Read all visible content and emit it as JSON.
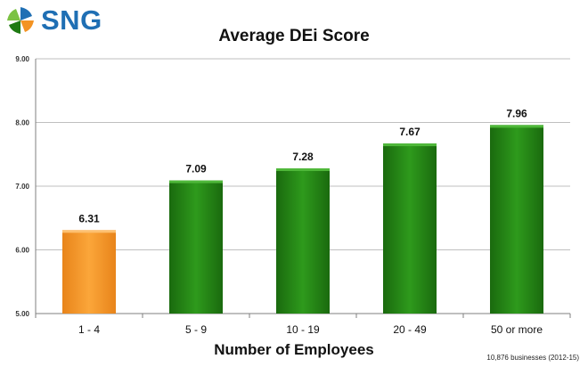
{
  "logo": {
    "text": "SNG",
    "icon": "sng-pinwheel-logo-icon"
  },
  "chart_data": {
    "type": "bar",
    "title": "Average DEi Score",
    "xlabel": "Number of Employees",
    "ylabel": "",
    "categories": [
      "1 - 4",
      "5 - 9",
      "10 - 19",
      "20 - 49",
      "50 or more"
    ],
    "values": [
      6.31,
      7.09,
      7.28,
      7.67,
      7.96
    ],
    "data_labels": [
      "6.31",
      "7.09",
      "7.28",
      "7.67",
      "7.96"
    ],
    "ylim": [
      5.0,
      9.0
    ],
    "yticks": [
      5.0,
      6.0,
      7.0,
      8.0,
      9.0
    ],
    "ytick_labels": [
      "5.00",
      "6.00",
      "7.00",
      "8.00",
      "9.00"
    ],
    "grid": true,
    "legend": "none",
    "bar_colors": [
      "#f39322",
      "#1f7a12",
      "#1f7a12",
      "#1f7a12",
      "#1f7a12"
    ]
  },
  "footnote": "10,876  businesses (2012-15)"
}
